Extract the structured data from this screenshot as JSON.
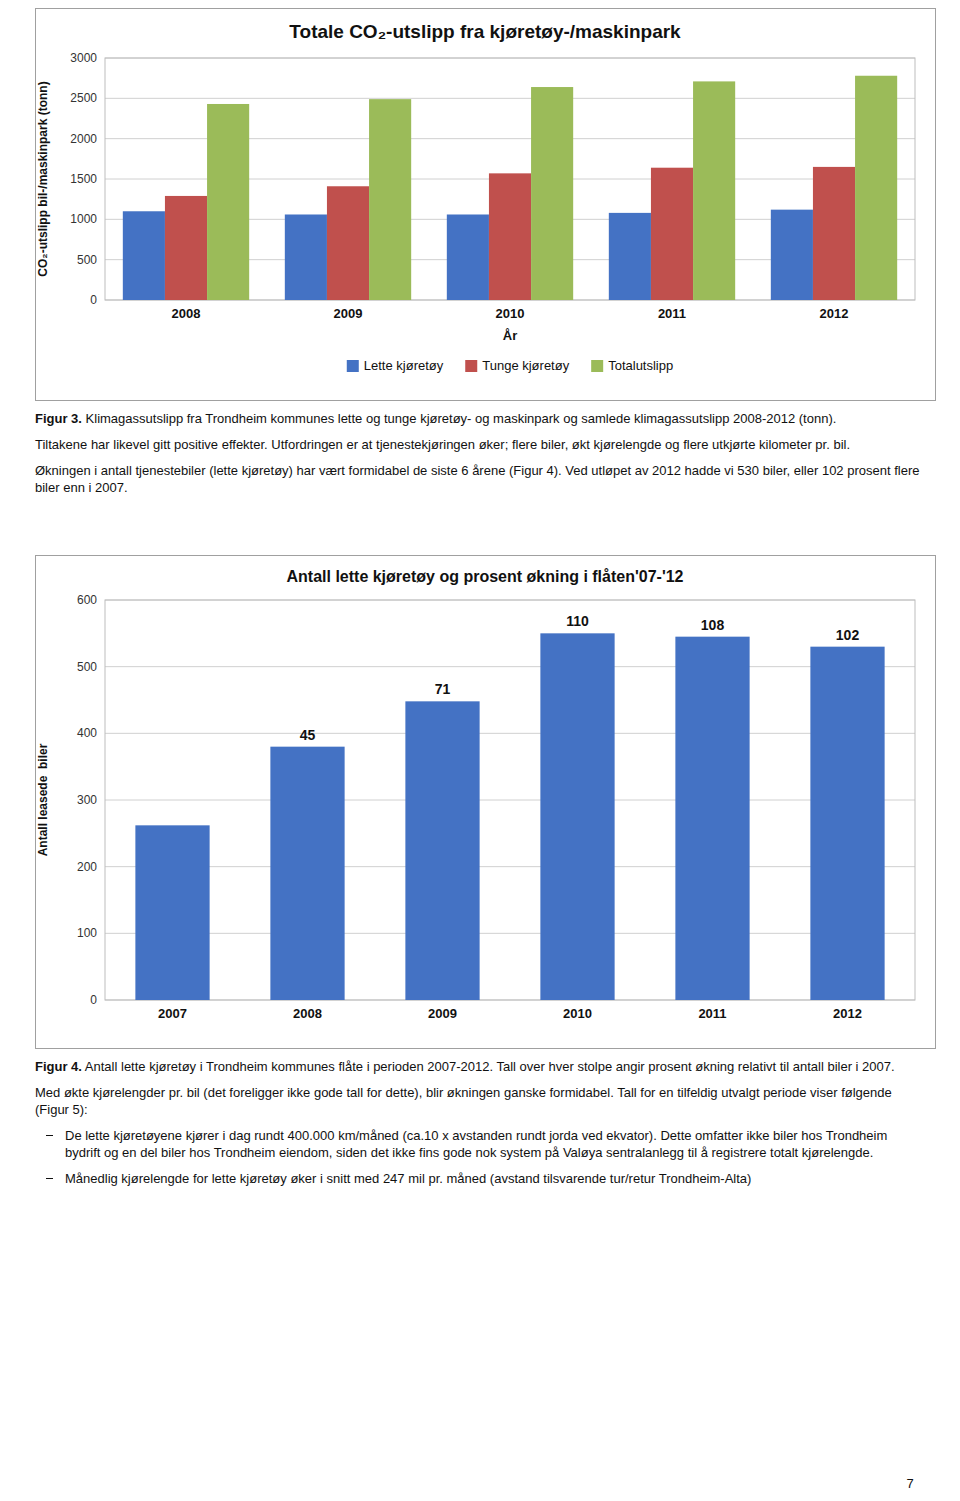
{
  "chart_data": [
    {
      "type": "bar",
      "title": "Totale CO₂-utslipp fra kjøretøy-/maskinpark",
      "categories": [
        "2008",
        "2009",
        "2010",
        "2011",
        "2012"
      ],
      "series": [
        {
          "name": "Lette kjøretøy",
          "color": "#4472C4",
          "values": [
            1100,
            1060,
            1060,
            1080,
            1120
          ]
        },
        {
          "name": "Tunge kjøretøy",
          "color": "#C0504D",
          "values": [
            1290,
            1410,
            1570,
            1640,
            1650
          ]
        },
        {
          "name": "Totalutslipp",
          "color": "#9BBB59",
          "values": [
            2430,
            2490,
            2640,
            2710,
            2780
          ]
        }
      ],
      "xlabel": "År",
      "ylabel": "CO₂-utslipp bil-/maskinpark (tonn)",
      "ylim": [
        0,
        3000
      ],
      "yticks": [
        0,
        500,
        1000,
        1500,
        2000,
        2500,
        3000
      ],
      "grid": true,
      "legend": "bottom",
      "annotations": [
        "Figur 3.",
        "Klimagassutslipp fra Trondheim kommunes lette og tunge kjøretøy- og maskinpark og samlede klimagassutslipp 2008-2012 (tonn).",
        "Tiltakene har likevel gitt positive effekter. Utfordringen er at tjenestekjøringen øker; flere biler, økt kjørelengde og flere utkjørte kilometer pr. bil.",
        "Økningen i antall tjenestebiler (lette kjøretøy) har vært formidabel de siste 6 årene (Figur 4). Ved utløpet av 2012 hadde vi 530 biler, eller 102 prosent flere biler enn i 2007."
      ]
    },
    {
      "type": "bar",
      "title": "Antall lette kjøretøy og prosent økning i flåten'07-'12",
      "categories": [
        "2007",
        "2008",
        "2009",
        "2010",
        "2011",
        "2012"
      ],
      "values": [
        262,
        380,
        448,
        550,
        545,
        530
      ],
      "percent_increase": [
        null,
        45,
        71,
        110,
        108,
        102
      ],
      "color": "#4472C4",
      "ylabel": "Antall leasede  biler",
      "ylim": [
        0,
        600
      ],
      "yticks": [
        0,
        100,
        200,
        300,
        400,
        500,
        600
      ],
      "grid": true,
      "annotations": [
        "Figur 4.",
        "Antall lette kjøretøy i Trondheim kommunes flåte i perioden 2007-2012. Tall over hver stolpe angir prosent økning relativt til antall biler i 2007.",
        "Med økte kjørelengder pr. bil (det foreligger ikke gode tall for dette), blir økningen ganske formidabel. Tall for en tilfeldig utvalgt periode viser følgende (Figur 5):",
        "De lette kjøretøyene kjører i dag rundt 400.000 km/måned (ca.10 x avstanden rundt jorda ved ekvator). Dette omfatter ikke biler hos Trondheim bydrift og en del biler hos Trondheim eiendom, siden det ikke fins gode nok system på Valøya sentralanlegg til å registrere totalt kjørelengde.",
        "Månedlig kjørelengde for lette kjøretøy øker i snitt med 247 mil pr. måned (avstand tilsvarende tur/retur Trondheim-Alta)",
        "7"
      ]
    }
  ]
}
